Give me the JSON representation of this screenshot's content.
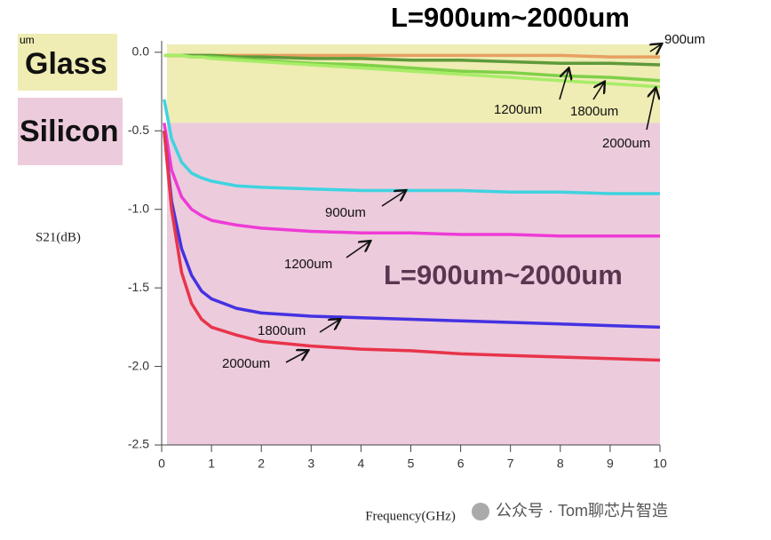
{
  "chart_data": {
    "type": "line",
    "xlabel": "Frequency(GHz)",
    "ylabel": "S21(dB)",
    "x": [
      0.05,
      0.2,
      0.4,
      0.6,
      0.8,
      1,
      1.5,
      2,
      3,
      4,
      5,
      6,
      7,
      8,
      9,
      10
    ],
    "xlim": [
      0,
      10
    ],
    "xticks": [
      0,
      1,
      2,
      3,
      4,
      5,
      6,
      7,
      8,
      9,
      10
    ],
    "ylim": [
      -2.5,
      0.05
    ],
    "yticks": [
      {
        "value": 0,
        "label": "0.0"
      },
      -0.5,
      {
        "value": -1,
        "label": "-1.0"
      },
      -1.5,
      {
        "value": -2,
        "label": "-2.0"
      },
      -2.5
    ],
    "bands": [
      {
        "label": "Glass",
        "from": 0.05,
        "to": -0.45,
        "color": "#efecb4"
      },
      {
        "label": "Silicon",
        "from": -0.45,
        "to": -2.5,
        "color": "#eccbdc"
      }
    ],
    "series": [
      {
        "name": "900um",
        "color": "#e8a060",
        "values": [
          -0.02,
          -0.02,
          -0.02,
          -0.02,
          -0.02,
          -0.02,
          -0.02,
          -0.02,
          -0.02,
          -0.02,
          -0.02,
          -0.02,
          -0.02,
          -0.02,
          -0.03,
          -0.03
        ]
      },
      {
        "name": "1200um",
        "color": "#5e9a3a",
        "values": [
          -0.02,
          -0.02,
          -0.02,
          -0.02,
          -0.02,
          -0.02,
          -0.03,
          -0.03,
          -0.04,
          -0.04,
          -0.05,
          -0.05,
          -0.06,
          -0.07,
          -0.07,
          -0.08
        ]
      },
      {
        "name": "1800um",
        "color": "#7fd048",
        "values": [
          -0.02,
          -0.02,
          -0.02,
          -0.03,
          -0.03,
          -0.03,
          -0.04,
          -0.05,
          -0.07,
          -0.08,
          -0.1,
          -0.12,
          -0.13,
          -0.15,
          -0.16,
          -0.18
        ]
      },
      {
        "name": "2000um",
        "color": "#a8ec68",
        "values": [
          -0.02,
          -0.02,
          -0.02,
          -0.03,
          -0.03,
          -0.04,
          -0.05,
          -0.06,
          -0.08,
          -0.1,
          -0.12,
          -0.14,
          -0.16,
          -0.18,
          -0.2,
          -0.22
        ]
      },
      {
        "name": "900um",
        "color": "#3fd3e0",
        "values": [
          -0.3,
          -0.55,
          -0.7,
          -0.77,
          -0.8,
          -0.82,
          -0.85,
          -0.86,
          -0.87,
          -0.88,
          -0.88,
          -0.88,
          -0.89,
          -0.89,
          -0.9,
          -0.9
        ]
      },
      {
        "name": "1200um",
        "color": "#ee3bd6",
        "values": [
          -0.45,
          -0.75,
          -0.92,
          -1.0,
          -1.04,
          -1.07,
          -1.1,
          -1.12,
          -1.14,
          -1.15,
          -1.15,
          -1.16,
          -1.16,
          -1.17,
          -1.17,
          -1.17
        ]
      },
      {
        "name": "1800um",
        "color": "#4432e2",
        "values": [
          -0.5,
          -0.95,
          -1.25,
          -1.42,
          -1.52,
          -1.57,
          -1.63,
          -1.66,
          -1.68,
          -1.69,
          -1.7,
          -1.71,
          -1.72,
          -1.73,
          -1.74,
          -1.75
        ]
      },
      {
        "name": "2000um",
        "color": "#e8344a",
        "values": [
          -0.5,
          -1.0,
          -1.4,
          -1.6,
          -1.7,
          -1.75,
          -1.8,
          -1.84,
          -1.87,
          -1.89,
          -1.9,
          -1.92,
          -1.93,
          -1.94,
          -1.95,
          -1.96
        ]
      }
    ],
    "annotations": [
      "L=900um~2000um",
      "L=900um~2000um",
      "um"
    ],
    "watermark": "公众号 · Tom聊芯片智造"
  }
}
